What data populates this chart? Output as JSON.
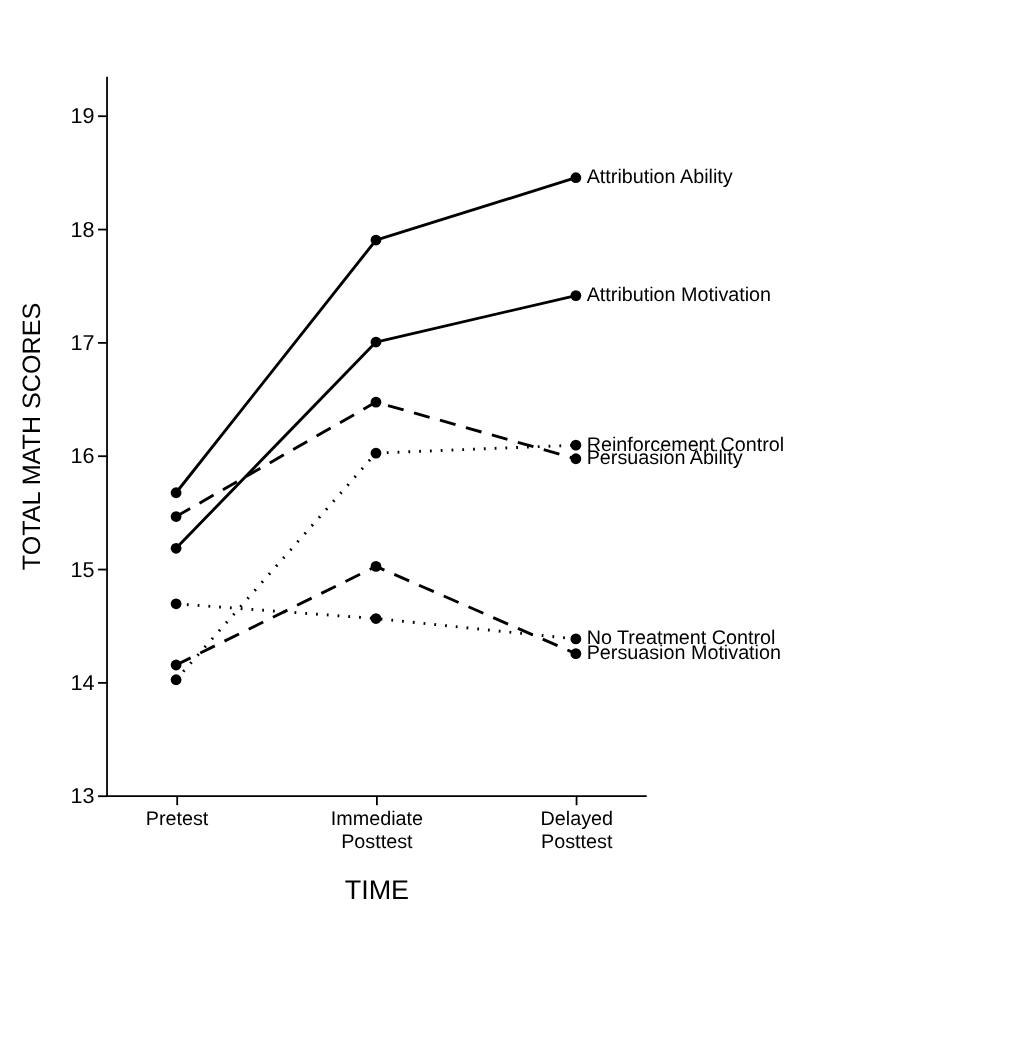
{
  "chart_data": {
    "type": "line",
    "xlabel": "TIME",
    "ylabel": "TOTAL  MATH  SCORES",
    "categories": [
      "Pretest",
      "Immediate Posttest",
      "Delayed Posttest"
    ],
    "series": [
      {
        "name": "Attribution Ability",
        "color": "#000000",
        "values": [
          15.67,
          17.9,
          18.45
        ],
        "line_style": "solid",
        "marker": "circle"
      },
      {
        "name": "Attribution Motivation",
        "color": "#000000",
        "values": [
          15.18,
          17.0,
          17.41
        ],
        "line_style": "solid",
        "marker": "circle"
      },
      {
        "name": "Reinforcement Control",
        "color": "#000000",
        "values": [
          14.02,
          16.02,
          16.09
        ],
        "line_style": "dotted",
        "marker": "circle"
      },
      {
        "name": "Persuasion Ability",
        "color": "#000000",
        "values": [
          15.46,
          16.47,
          15.97
        ],
        "line_style": "dashed",
        "marker": "circle"
      },
      {
        "name": "No Treatment Control",
        "color": "#000000",
        "values": [
          14.69,
          14.56,
          14.38
        ],
        "line_style": "dotted",
        "marker": "circle"
      },
      {
        "name": "Persuasion Motivation",
        "color": "#000000",
        "values": [
          14.15,
          15.02,
          14.25
        ],
        "line_style": "dashed",
        "marker": "circle"
      }
    ],
    "ylim": [
      13,
      19.35
    ],
    "yticks": [
      13,
      14,
      15,
      16,
      17,
      18,
      19
    ],
    "grid": false,
    "legend": false
  }
}
